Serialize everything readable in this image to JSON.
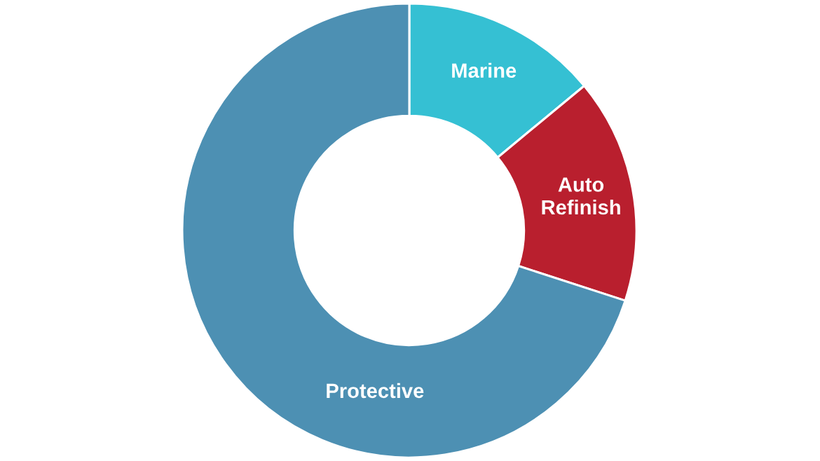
{
  "chart_data": {
    "type": "donut",
    "categories": [
      "Marine",
      "Auto Refinish",
      "Protective"
    ],
    "values": [
      14,
      16,
      70
    ],
    "colors": [
      "#35c0d3",
      "#b91f2e",
      "#4d90b3"
    ]
  }
}
